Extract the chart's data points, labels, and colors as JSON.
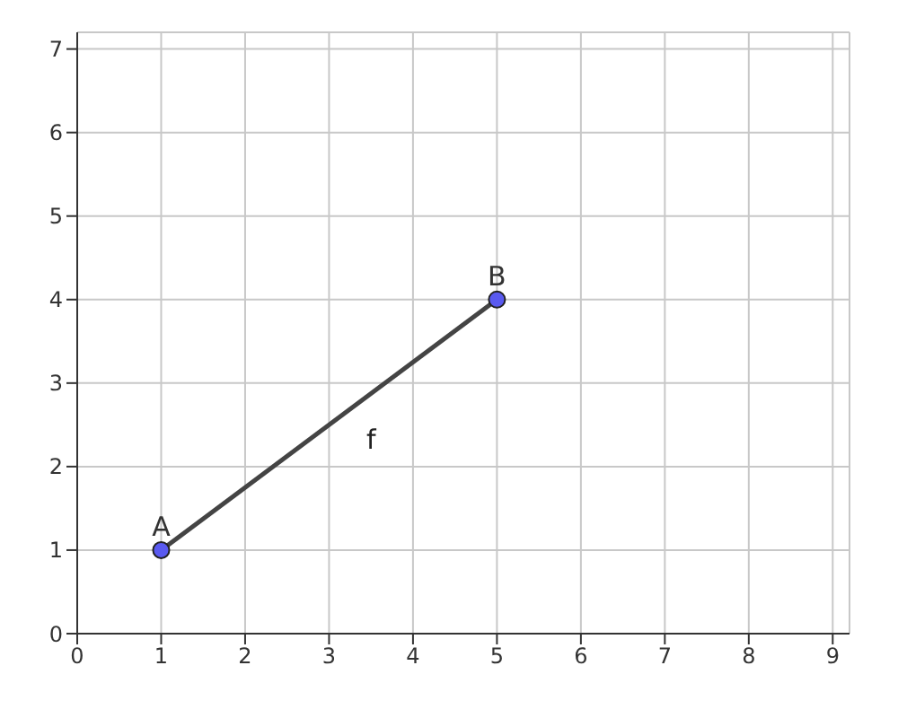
{
  "chart_data": {
    "type": "line",
    "x": [
      1,
      5
    ],
    "series": [
      {
        "color": "#444444",
        "values": [
          1,
          4
        ],
        "marker": "none"
      },
      {
        "type": "scatter",
        "color": "#5a5af0",
        "values": [
          1,
          4
        ],
        "marker": "circle"
      }
    ],
    "annotations": [
      {
        "text": "A",
        "x": 1,
        "y": 1
      },
      {
        "text": "B",
        "x": 5,
        "y": 4
      },
      "f"
    ],
    "xlim": [
      0,
      9.2
    ],
    "ylim": [
      0,
      7.2
    ],
    "xticks": [
      0,
      1,
      2,
      3,
      4,
      5,
      6,
      7,
      8,
      9
    ],
    "yticks": [
      0,
      1,
      2,
      3,
      4,
      5,
      6,
      7
    ],
    "grid": true
  }
}
